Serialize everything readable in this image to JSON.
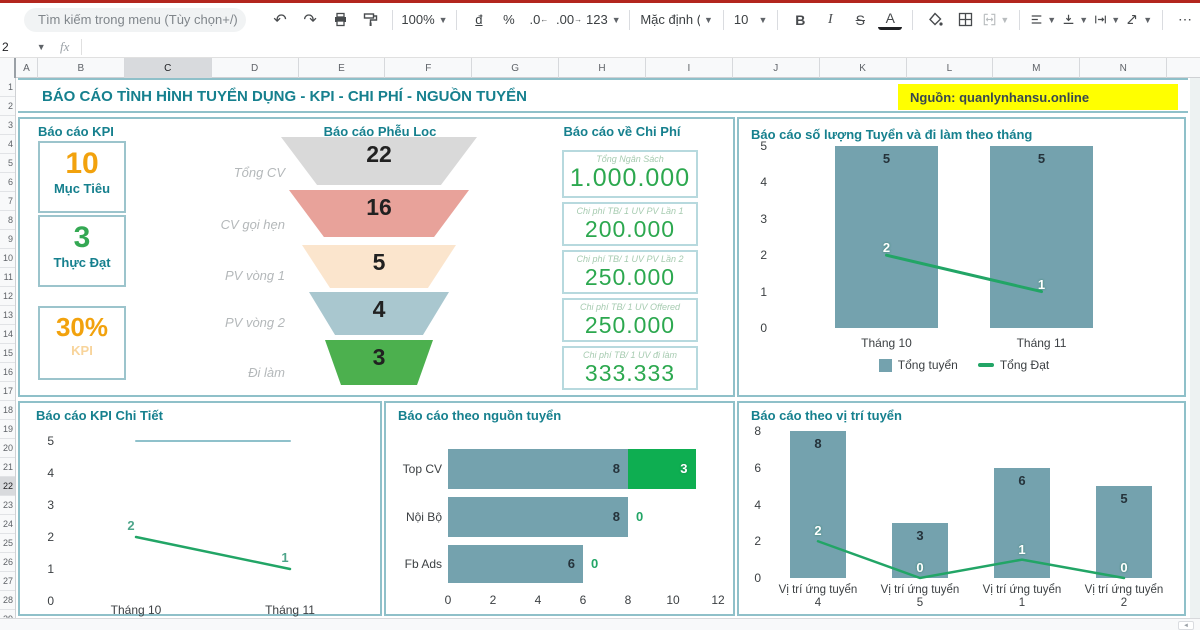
{
  "toolbar": {
    "search_placeholder": "Tìm kiếm trong menu (Tùy chọn+/)",
    "zoom_value": "100%",
    "currency_label": "đ",
    "percent_label": "%",
    "decimal_decrease": ".0",
    "decimal_increase": ".00",
    "number_format": "123",
    "font_name": "Mặc định (...",
    "font_size": "10",
    "bold_label": "B",
    "italic_label": "I",
    "strikethrough_label": "S",
    "text_color_label": "A",
    "more_label": "⋯"
  },
  "formula_bar": {
    "name_box": "2",
    "fx_label": "fx"
  },
  "grid": {
    "columns": [
      "A",
      "B",
      "C",
      "D",
      "E",
      "F",
      "G",
      "H",
      "I",
      "J",
      "K",
      "L",
      "M",
      "N"
    ],
    "selected_column": "C",
    "row_numbers": [
      1,
      2,
      3,
      4,
      5,
      6,
      7,
      8,
      9,
      10,
      11,
      12,
      13,
      14,
      15,
      16,
      17,
      18,
      19,
      20,
      21,
      22,
      23,
      24,
      25,
      26,
      27,
      28,
      29
    ],
    "selected_row": 22
  },
  "dashboard": {
    "title": "BÁO CÁO TÌNH HÌNH TUYỂN DỤNG - KPI - CHI PHÍ - NGUỒN TUYỂN",
    "source_note": "Nguồn: quanlynhansu.online",
    "colors": {
      "accent_teal": "#16808e",
      "panel_border": "#8fc0c9",
      "bar_teal": "#74a2ae",
      "line_green": "#22a566",
      "stack_green": "#0eae51",
      "orange": "#f2a20d",
      "green": "#34a853",
      "pale_orange": "#f8d49b",
      "yellow_bg": "#ffff00"
    },
    "kpi_panel": {
      "title": "Báo cáo KPI",
      "cards": [
        {
          "value": "10",
          "label": "Mục Tiêu",
          "value_color": "#f2a20d",
          "label_color": "#16808e"
        },
        {
          "value": "3",
          "label": "Thực Đạt",
          "value_color": "#34a853",
          "label_color": "#16808e"
        },
        {
          "value": "30%",
          "label": "KPI",
          "value_color": "#f2a20d",
          "label_color": "#f8d49b"
        }
      ]
    },
    "funnel_panel": {
      "title": "Báo cáo Phễu Lọc",
      "steps": [
        {
          "label": "Tổng CV",
          "value": "22",
          "color": "#d9d9d9"
        },
        {
          "label": "CV gọi hẹn",
          "value": "16",
          "color": "#e8a29a"
        },
        {
          "label": "PV vòng 1",
          "value": "5",
          "color": "#fbe5cd"
        },
        {
          "label": "PV vòng 2",
          "value": "4",
          "color": "#a9c7cf"
        },
        {
          "label": "Đi làm",
          "value": "3",
          "color": "#4cb04e"
        }
      ]
    },
    "cost_panel": {
      "title": "Báo cáo về Chi Phí",
      "items": [
        {
          "label": "Tổng Ngân Sách",
          "value": "1.000.000"
        },
        {
          "label": "Chi phí TB/ 1 UV PV Lần 1",
          "value": "200.000"
        },
        {
          "label": "Chi phí TB/ 1 UV PV Lần 2",
          "value": "250.000"
        },
        {
          "label": "Chi phí TB/ 1 UV Offered",
          "value": "250.000"
        },
        {
          "label": "Chi phí TB/ 1 UV đi làm",
          "value": "333.333"
        }
      ]
    }
  },
  "chart_data": [
    {
      "id": "monthly",
      "type": "bar",
      "title": "Báo cáo số lượng Tuyển và đi làm theo tháng",
      "categories": [
        "Tháng 10",
        "Tháng 11"
      ],
      "series": [
        {
          "name": "Tổng tuyển",
          "type": "bar",
          "values": [
            5,
            5
          ],
          "color": "#74a2ae"
        },
        {
          "name": "Tổng Đạt",
          "type": "line",
          "values": [
            2,
            1
          ],
          "color": "#22a566"
        }
      ],
      "yticks": [
        5,
        4,
        3,
        2,
        1,
        0
      ],
      "ylim": [
        0,
        5
      ],
      "legend_position": "bottom",
      "grid": false
    },
    {
      "id": "kpi_detail",
      "type": "line",
      "title": "Báo cáo KPI Chi Tiết",
      "categories": [
        "Tháng 10",
        "Tháng 11"
      ],
      "series": [
        {
          "name": "Mục tiêu",
          "values": [
            5,
            5
          ],
          "color": "#8fc1cb",
          "point_labels": false
        },
        {
          "name": "Thực đạt",
          "values": [
            2,
            1
          ],
          "color": "#22a566",
          "point_labels": true,
          "label_color": "#4da58a"
        }
      ],
      "yticks": [
        5,
        4,
        3,
        2,
        1,
        0
      ],
      "ylim": [
        0,
        5
      ],
      "grid": false
    },
    {
      "id": "source",
      "type": "hbar-stacked",
      "title": "Báo cáo theo nguồn tuyển",
      "categories": [
        "Top CV",
        "Nội Bộ",
        "Fb Ads"
      ],
      "series": [
        {
          "name": "Tổng tuyển",
          "values": [
            8,
            8,
            6
          ],
          "color": "#74a2ae",
          "label_color": "#25333b"
        },
        {
          "name": "Tổng đạt",
          "values": [
            3,
            0,
            0
          ],
          "color": "#0eae51",
          "label_color": "#22a566"
        }
      ],
      "xticks": [
        0,
        2,
        4,
        6,
        8,
        10,
        12
      ],
      "xlim": [
        0,
        12
      ],
      "grid": false
    },
    {
      "id": "position",
      "type": "bar",
      "title": "Báo cáo theo vị trí tuyển",
      "categories": [
        [
          "Vị trí ứng tuyển",
          "4"
        ],
        [
          "Vị trí ứng tuyển",
          "5"
        ],
        [
          "Vị trí ứng tuyển",
          "1"
        ],
        [
          "Vị trí ứng tuyển",
          "2"
        ]
      ],
      "series": [
        {
          "name": "Tổng tuyển",
          "type": "bar",
          "values": [
            8,
            3,
            6,
            5
          ],
          "color": "#74a2ae"
        },
        {
          "name": "Tổng đạt",
          "type": "line",
          "values": [
            2,
            0,
            1,
            0
          ],
          "color": "#22a566"
        }
      ],
      "yticks": [
        8,
        6,
        4,
        2,
        0
      ],
      "ylim": [
        0,
        8
      ],
      "grid": false
    }
  ]
}
